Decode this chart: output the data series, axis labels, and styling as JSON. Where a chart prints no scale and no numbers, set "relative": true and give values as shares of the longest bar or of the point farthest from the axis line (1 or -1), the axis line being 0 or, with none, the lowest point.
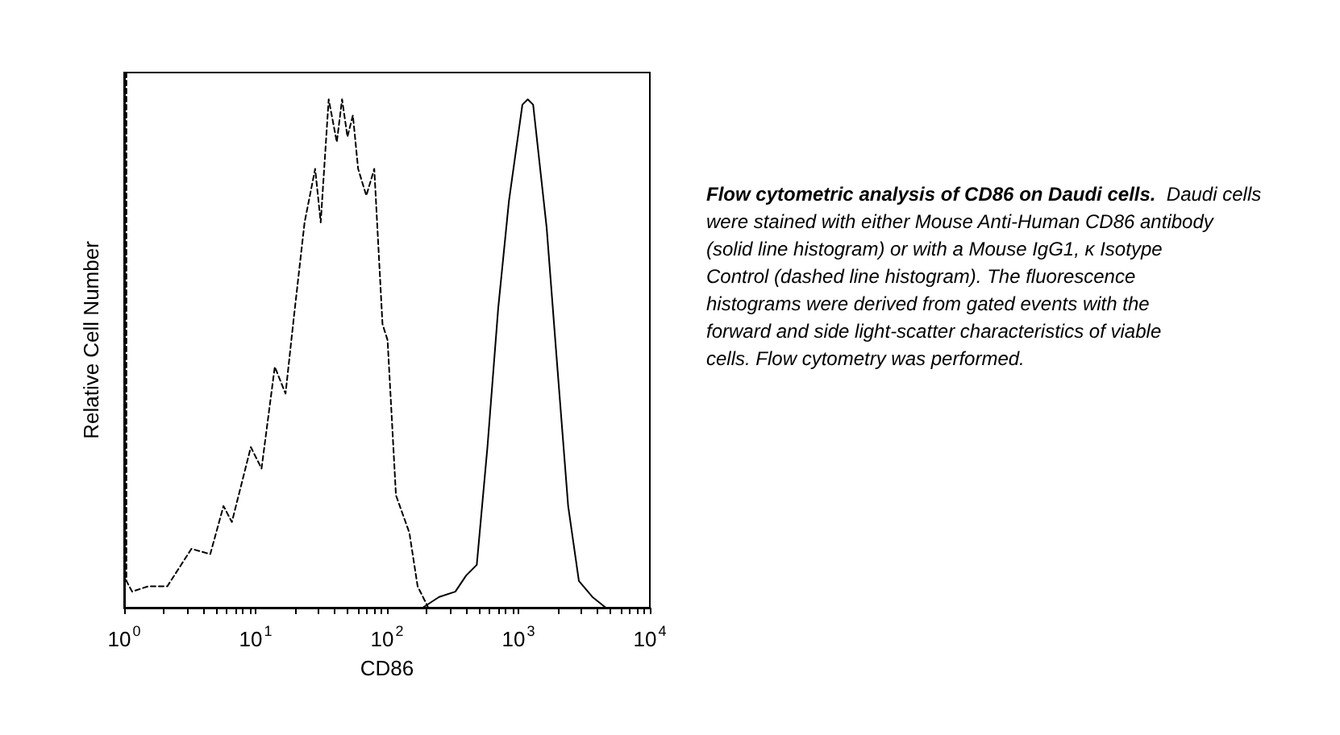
{
  "chart_data": {
    "type": "line",
    "relative": true,
    "log": "x",
    "xlabel": "CD86",
    "ylabel": "Relative Cell Number",
    "xlim": [
      1,
      10000
    ],
    "xticks": [
      {
        "value": 1,
        "label": "10$^{0}$"
      },
      {
        "value": 2,
        "label": null
      },
      {
        "value": 3,
        "label": null
      },
      {
        "value": 4,
        "label": null
      },
      {
        "value": 5,
        "label": null
      },
      {
        "value": 6,
        "label": null
      },
      {
        "value": 7,
        "label": null
      },
      {
        "value": 8,
        "label": null
      },
      {
        "value": 9,
        "label": null
      },
      {
        "value": 10,
        "label": "10$^{1}$"
      },
      {
        "value": 20,
        "label": null
      },
      {
        "value": 30,
        "label": null
      },
      {
        "value": 40,
        "label": null
      },
      {
        "value": 50,
        "label": null
      },
      {
        "value": 60,
        "label": null
      },
      {
        "value": 70,
        "label": null
      },
      {
        "value": 80,
        "label": null
      },
      {
        "value": 90,
        "label": null
      },
      {
        "value": 100,
        "label": "10$^{2}$"
      },
      {
        "value": 200,
        "label": null
      },
      {
        "value": 300,
        "label": null
      },
      {
        "value": 400,
        "label": null
      },
      {
        "value": 500,
        "label": null
      },
      {
        "value": 600,
        "label": null
      },
      {
        "value": 700,
        "label": null
      },
      {
        "value": 800,
        "label": null
      },
      {
        "value": 900,
        "label": null
      },
      {
        "value": 1000,
        "label": "10$^{3}$"
      },
      {
        "value": 2000,
        "label": null
      },
      {
        "value": 3000,
        "label": null
      },
      {
        "value": 4000,
        "label": null
      },
      {
        "value": 5000,
        "label": null
      },
      {
        "value": 6000,
        "label": null
      },
      {
        "value": 7000,
        "label": null
      },
      {
        "value": 8000,
        "label": null
      },
      {
        "value": 9000,
        "label": null
      },
      {
        "value": 10000,
        "label": "10$^{4}$"
      }
    ],
    "grid": false,
    "marker": "none",
    "series": [
      {
        "color": "#000000",
        "line_style": "dashed",
        "x": [
          1.04,
          1.04,
          1.15,
          1.53,
          2.13,
          3.25,
          4.52,
          5.7,
          6.6,
          9.2,
          11.1,
          14,
          16.9,
          19.5,
          23.6,
          28.4,
          31.3,
          36,
          41.5,
          45.5,
          50,
          55,
          60.3,
          69.6,
          80,
          92.4,
          101,
          117,
          148,
          171,
          206,
          3800
        ],
        "values": [
          1,
          0.05,
          0.03,
          0.04,
          0.04,
          0.11,
          0.1,
          0.19,
          0.16,
          0.3,
          0.26,
          0.45,
          0.4,
          0.54,
          0.72,
          0.82,
          0.72,
          0.95,
          0.87,
          0.95,
          0.88,
          0.92,
          0.82,
          0.77,
          0.82,
          0.53,
          0.5,
          0.21,
          0.14,
          0.04,
          0,
          0
        ]
      },
      {
        "color": "#000000",
        "line_style": "solid",
        "x": [
          187,
          249,
          331,
          400,
          482,
          581,
          702,
          847,
          1072,
          1178,
          1294,
          1640,
          1977,
          2390,
          2885,
          3655,
          4620
        ],
        "values": [
          0,
          0.02,
          0.03,
          0.06,
          0.08,
          0.3,
          0.56,
          0.76,
          0.94,
          0.95,
          0.94,
          0.71,
          0.45,
          0.19,
          0.05,
          0.02,
          0
        ]
      }
    ],
    "annotations": [
      "Flow cytometric analysis of CD86 on Daudi cells.",
      "Daudi cells were stained with either Mouse Anti-Human CD86 antibody (solid line histogram) or with a Mouse IgG1, κ Isotype Control (dashed line histogram). The fluorescence histograms were derived from gated events with the forward and side light-scatter characteristics of viable cells. Flow cytometry was performed."
    ]
  }
}
